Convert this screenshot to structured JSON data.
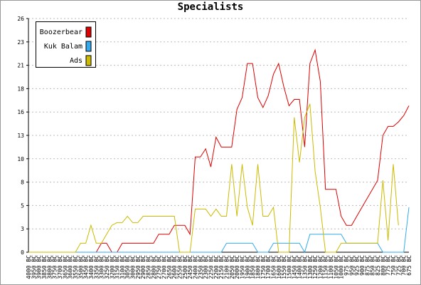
{
  "chart_data": {
    "type": "line",
    "title": "Specialists",
    "categories": [
      "4000 BC",
      "3950 BC",
      "3900 BC",
      "3850 BC",
      "3800 BC",
      "3750 BC",
      "3700 BC",
      "3650 BC",
      "3600 BC",
      "3550 BC",
      "3500 BC",
      "3450 BC",
      "3400 BC",
      "3350 BC",
      "3300 BC",
      "3250 BC",
      "3200 BC",
      "3150 BC",
      "3100 BC",
      "3050 BC",
      "3000 BC",
      "2950 BC",
      "2900 BC",
      "2850 BC",
      "2800 BC",
      "2750 BC",
      "2700 BC",
      "2650 BC",
      "2600 BC",
      "2550 BC",
      "2500 BC",
      "2450 BC",
      "2400 BC",
      "2350 BC",
      "2300 BC",
      "2250 BC",
      "2200 BC",
      "2150 BC",
      "2100 BC",
      "2050 BC",
      "2000 BC",
      "1950 BC",
      "1900 BC",
      "1850 BC",
      "1800 BC",
      "1750 BC",
      "1700 BC",
      "1650 BC",
      "1600 BC",
      "1550 BC",
      "1500 BC",
      "1450 BC",
      "1400 BC",
      "1350 BC",
      "1300 BC",
      "1250 BC",
      "1200 BC",
      "1150 BC",
      "1100 BC",
      "1050 BC",
      "1000 BC",
      "975 BC",
      "950 BC",
      "925 BC",
      "900 BC",
      "875 BC",
      "850 BC",
      "825 BC",
      "800 BC",
      "775 BC",
      "750 BC",
      "725 BC",
      "700 BC",
      "675 BC"
    ],
    "series": [
      {
        "name": "Boozerbear",
        "color": "#dd0000",
        "values": [
          0,
          0,
          0,
          0,
          0,
          0,
          0,
          0,
          0,
          0,
          0,
          0,
          0,
          0,
          1,
          1,
          0,
          0,
          1,
          1,
          1,
          1,
          1,
          1,
          1,
          2,
          2,
          2,
          3,
          3,
          3,
          2,
          10.6,
          10.6,
          11.5,
          9.5,
          12.8,
          11.7,
          11.7,
          11.7,
          15.9,
          17.2,
          21,
          21,
          17.2,
          16.1,
          17.4,
          19.8,
          21,
          18.4,
          16.3,
          17,
          17,
          11.7,
          21,
          22.5,
          19,
          7,
          7,
          7,
          4,
          3,
          3,
          4,
          5,
          6,
          7,
          8,
          13,
          14,
          14,
          14.5,
          15.2,
          16.3
        ]
      },
      {
        "name": "Kuk Balam",
        "color": "#33aaee",
        "values": [
          0,
          0,
          0,
          0,
          0,
          0,
          0,
          0,
          0,
          0,
          0,
          0,
          0,
          0,
          0,
          0,
          0,
          0,
          0,
          0,
          0,
          0,
          0,
          0,
          0,
          0,
          0,
          0,
          0,
          0,
          0,
          0,
          0,
          0,
          0,
          0,
          0,
          0,
          1,
          1,
          1,
          1,
          1,
          1,
          0,
          0,
          0,
          1,
          1,
          1,
          1,
          1,
          1,
          0,
          2,
          2,
          2,
          2,
          2,
          2,
          2,
          1,
          1,
          1,
          1,
          1,
          1,
          1,
          0,
          0,
          0,
          0,
          0,
          5
        ]
      },
      {
        "name": "Ads",
        "color": "#ccbb00",
        "values": [
          0,
          0,
          0,
          0,
          0,
          0,
          0,
          0,
          0,
          0,
          1,
          1,
          3,
          1,
          1,
          2,
          3,
          3.3,
          3.3,
          4,
          3.3,
          3.3,
          4,
          4,
          4,
          4,
          4,
          4,
          4,
          0,
          0,
          0,
          4.8,
          4.8,
          4.8,
          4,
          4.8,
          4,
          4,
          9.8,
          4,
          9.8,
          5,
          3,
          9.8,
          4,
          4,
          5,
          0,
          0,
          0,
          15,
          10,
          15,
          16.5,
          9,
          5,
          0,
          0,
          0,
          1,
          1,
          1,
          1,
          1,
          1,
          1,
          1,
          8,
          1.3,
          9.8,
          3,
          null,
          null
        ]
      }
    ],
    "ylim": [
      0,
      26
    ],
    "yticks": [
      0,
      {
        "value": 2.6,
        "label": "3"
      },
      {
        "value": 5.2,
        "label": "5"
      },
      {
        "value": 7.8,
        "label": "8"
      },
      {
        "value": 10.4,
        "label": "10"
      },
      13,
      {
        "value": 15.6,
        "label": "16"
      },
      {
        "value": 18.2,
        "label": "18"
      },
      {
        "value": 20.8,
        "label": "21"
      },
      {
        "value": 23.4,
        "label": "23"
      },
      26
    ],
    "grid": true,
    "legend": "top-left"
  }
}
